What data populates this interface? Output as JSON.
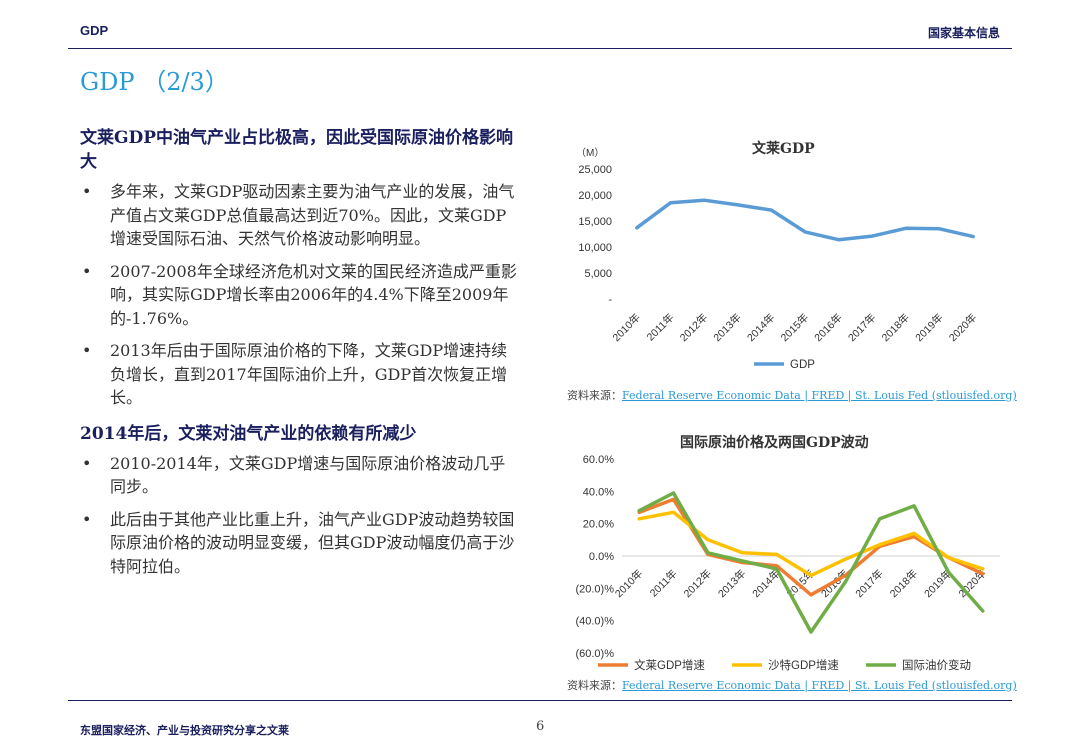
{
  "header": {
    "left": "GDP",
    "right": "国家基本信息"
  },
  "title": "GDP （2/3）",
  "sections": [
    {
      "heading": "文莱GDP中油气产业占比极高，因此受国际原油价格影响大",
      "bullets": [
        "多年来，文莱GDP驱动因素主要为油气产业的发展，油气产值占文莱GDP总值最高达到近70%。因此，文莱GDP增速受国际石油、天然气价格波动影响明显。",
        "2007-2008年全球经济危机对文莱的国民经济造成严重影响，其实际GDP增长率由2006年的4.4%下降至2009年的-1.76%。",
        "2013年后由于国际原油价格的下降，文莱GDP增速持续负增长，直到2017年国际油价上升，GDP首次恢复正增长。"
      ]
    },
    {
      "heading": "2014年后，文莱对油气产业的依赖有所减少",
      "bullets": [
        "2010-2014年，文莱GDP增速与国际原油价格波动几乎同步。",
        "此后由于其他产业比重上升，油气产业GDP波动趋势较国际原油价格的波动明显变缓，但其GDP波动幅度仍高于沙特阿拉伯。"
      ]
    }
  ],
  "source": {
    "prefix": "资料来源：",
    "link": "Federal Reserve Economic Data | FRED | St. Louis Fed (stlouisfed.org)"
  },
  "footer": {
    "left": "东盟国家经济、产业与投资研究分享之文莱",
    "page": "6"
  },
  "chart_data": [
    {
      "type": "line",
      "title": "文莱GDP",
      "unit_label": "（M）",
      "categories": [
        "2010年",
        "2011年",
        "2012年",
        "2013年",
        "2014年",
        "2015年",
        "2016年",
        "2017年",
        "2018年",
        "2019年",
        "2020年"
      ],
      "series": [
        {
          "name": "GDP",
          "color": "#5b9bd5",
          "values": [
            13700,
            18500,
            19000,
            18100,
            17100,
            12900,
            11400,
            12100,
            13600,
            13500,
            12000
          ]
        }
      ],
      "yticks": [
        0,
        5000,
        10000,
        15000,
        20000,
        25000
      ],
      "ytick_labels": [
        "-",
        "5,000",
        "10,000",
        "15,000",
        "20,000",
        "25,000"
      ],
      "ylim": [
        0,
        25000
      ],
      "legend": "bottom",
      "grid": false
    },
    {
      "type": "line",
      "title": "国际原油价格及两国GDP波动",
      "categories": [
        "2010年",
        "2011年",
        "2012年",
        "2013年",
        "2014年",
        "2015年",
        "2016年",
        "2017年",
        "2018年",
        "2019年",
        "2020年"
      ],
      "series": [
        {
          "name": "文莱GDP增速",
          "color": "#ed7d31",
          "values": [
            27,
            35,
            1,
            -4,
            -6,
            -24,
            -12,
            6,
            12,
            -1,
            -11
          ]
        },
        {
          "name": "沙特GDP增速",
          "color": "#ffc000",
          "values": [
            23,
            27,
            10,
            2,
            1,
            -12,
            -2,
            7,
            14,
            -1,
            -8
          ]
        },
        {
          "name": "国际油价变动",
          "color": "#70ad47",
          "values": [
            28,
            39,
            2,
            -3,
            -8,
            -47,
            -16,
            23,
            31,
            -10,
            -34
          ]
        }
      ],
      "yticks": [
        -60,
        -40,
        -20,
        0,
        20,
        40,
        60
      ],
      "ytick_labels": [
        "(60.0)%",
        "(40.0)%",
        "(20.0)%",
        "0.0%",
        "20.0%",
        "40.0%",
        "60.0%"
      ],
      "ylim": [
        -60,
        60
      ],
      "legend": "bottom",
      "grid": false
    }
  ]
}
